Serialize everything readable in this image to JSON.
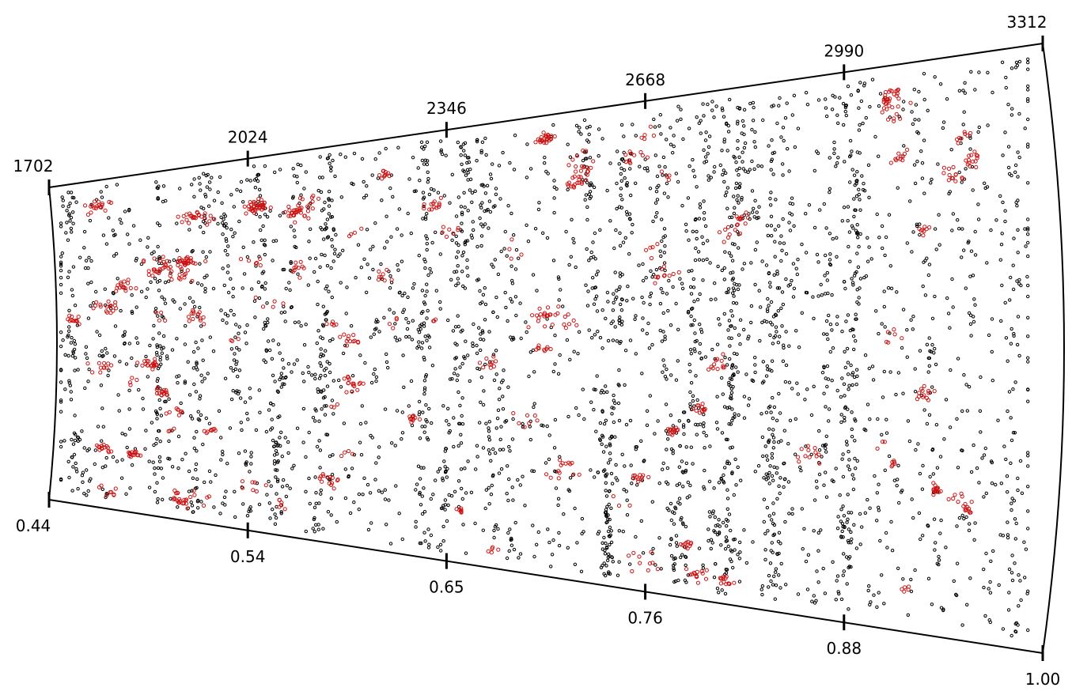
{
  "chart_data": {
    "type": "scatter",
    "title": "",
    "subtitle": "",
    "projection": "wedge",
    "axes": {
      "top": {
        "label": "",
        "range": [
          1702,
          3312
        ],
        "ticks": [
          {
            "value": 1702,
            "label": "1702"
          },
          {
            "value": 2024,
            "label": "2024"
          },
          {
            "value": 2346,
            "label": "2346"
          },
          {
            "value": 2668,
            "label": "2668"
          },
          {
            "value": 2990,
            "label": "2990"
          },
          {
            "value": 3312,
            "label": "3312"
          }
        ]
      },
      "bottom": {
        "label": "",
        "range": [
          0.44,
          1.0
        ],
        "ticks": [
          {
            "value": 0.44,
            "label": "0.44"
          },
          {
            "value": 0.54,
            "label": "0.54"
          },
          {
            "value": 0.65,
            "label": "0.65"
          },
          {
            "value": 0.76,
            "label": "0.76"
          },
          {
            "value": 0.88,
            "label": "0.88"
          },
          {
            "value": 1.0,
            "label": "1.00"
          }
        ]
      }
    },
    "grid": false,
    "legend": "none",
    "series": [
      {
        "marker": "open-circle",
        "color": "#000000",
        "description": "field galaxies (dense uniform scatter)",
        "count_estimate": 4000
      },
      {
        "marker": "open-circle",
        "color": "#cc1111",
        "description": "galaxies in identified groups/clusters (red clumps)",
        "count_estimate": 900
      }
    ]
  }
}
